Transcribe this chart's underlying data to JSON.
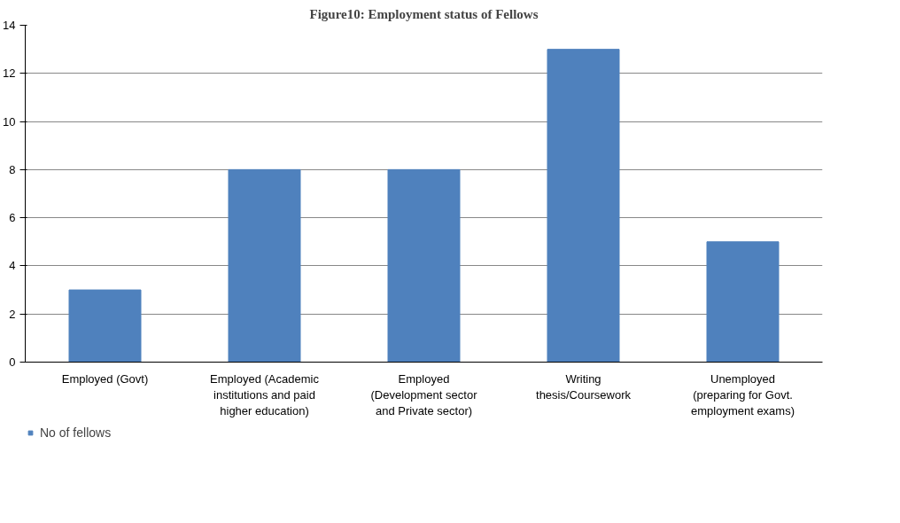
{
  "chart_data": {
    "type": "bar",
    "title": "Figure10: Employment status of Fellows",
    "categories": [
      "Employed (Govt)",
      "Employed (Academic\ninstitutions and paid\nhigher education)",
      "Employed\n(Development sector\nand Private sector)",
      "Writing\nthesis/Coursework",
      "Unemployed\n(preparing for Govt.\nemployment exams)"
    ],
    "series": [
      {
        "name": "No of fellows",
        "color": "#4f81bd",
        "values": [
          3,
          8,
          8,
          13,
          5
        ]
      }
    ],
    "ylim": [
      0,
      14
    ],
    "yticks": [
      0,
      2,
      4,
      6,
      8,
      10,
      12,
      14
    ],
    "grid": "y",
    "legend": "bottom left"
  }
}
